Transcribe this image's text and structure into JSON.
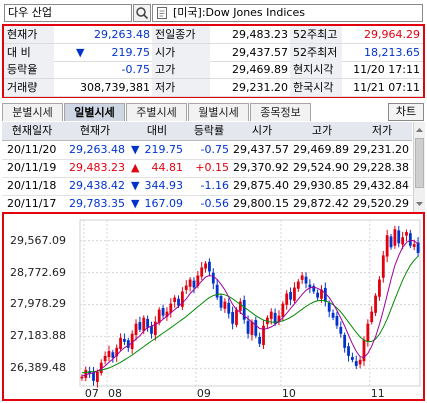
{
  "search": {
    "code_value": "다우 산업",
    "index_name": "[미국]:Dow Jones Indices"
  },
  "quote": {
    "rows": [
      {
        "l1": "현재가",
        "v1": "29,263.48",
        "c1": "blue",
        "l2": "전일종가",
        "v2": "29,483.23",
        "l3": "52주최고",
        "v3": "29,964.29",
        "c3": "red"
      },
      {
        "l1": "대 비",
        "arrow": "▼",
        "v1": "219.75",
        "c1": "blue",
        "l2": "시가",
        "v2": "29,437.57",
        "l3": "52주최저",
        "v3": "18,213.65",
        "c3": "blue"
      },
      {
        "l1": "등락율",
        "v1": "-0.75",
        "c1": "blue",
        "l2": "고가",
        "v2": "29,469.89",
        "l3": "현지시각",
        "v3": "11/20 17:11",
        "c3": "black"
      },
      {
        "l1": "거래량",
        "v1": "308,739,381",
        "c1": "black",
        "l2": "저가",
        "v2": "29,231.20",
        "l3": "한국시각",
        "v3": "11/21 07:11",
        "c3": "black"
      }
    ]
  },
  "tabs": [
    {
      "label": "분별시세",
      "active": false
    },
    {
      "label": "일별시세",
      "active": true
    },
    {
      "label": "주별시세",
      "active": false
    },
    {
      "label": "월별시세",
      "active": false
    },
    {
      "label": "종목정보",
      "active": false
    }
  ],
  "chart_button": "차트",
  "daily": {
    "headers": [
      "현재일자",
      "현재가",
      "대비",
      "등락률",
      "시가",
      "고가",
      "저가"
    ],
    "rows": [
      {
        "date": "20/11/20",
        "price": "29,263.48",
        "arrow": "▼",
        "change": "219.75",
        "pct": "-0.75",
        "open": "29,437.57",
        "high": "29,469.89",
        "low": "29,231.20",
        "color": "blue"
      },
      {
        "date": "20/11/19",
        "price": "29,483.23",
        "arrow": "▲",
        "change": "44.81",
        "pct": "+0.15",
        "open": "29,370.92",
        "high": "29,524.90",
        "low": "29,228.38",
        "color": "red"
      },
      {
        "date": "20/11/18",
        "price": "29,438.42",
        "arrow": "▼",
        "change": "344.93",
        "pct": "-1.16",
        "open": "29,875.40",
        "high": "29,930.85",
        "low": "29,432.84",
        "color": "blue"
      },
      {
        "date": "20/11/17",
        "price": "29,783.35",
        "arrow": "▼",
        "change": "167.09",
        "pct": "-0.56",
        "open": "29,800.15",
        "high": "29,872.42",
        "low": "29,520.29",
        "color": "blue"
      }
    ]
  },
  "chart_data": {
    "type": "line",
    "yticks": [
      "29,567.09",
      "28,772.69",
      "27,978.29",
      "27,183.88",
      "26,389.48"
    ],
    "ytick_values": [
      29567.09,
      28772.69,
      27978.29,
      27183.88,
      26389.48
    ],
    "xticks": [
      "07",
      "08",
      "09",
      "10",
      "11"
    ],
    "ylim": [
      26050,
      29980
    ],
    "colors": {
      "up": "#e3000f",
      "down": "#0033cc",
      "ma_short": "#a000a0",
      "ma_long": "#008c00"
    },
    "closes": [
      26180,
      26350,
      26250,
      26080,
      26300,
      26530,
      26700,
      26820,
      26650,
      26900,
      27150,
      27050,
      26900,
      27250,
      27500,
      27350,
      27650,
      27400,
      27250,
      27550,
      27850,
      27700,
      27800,
      28000,
      28150,
      27950,
      28300,
      28450,
      28600,
      28400,
      28700,
      28900,
      29000,
      28800,
      28500,
      28150,
      27900,
      28050,
      27750,
      27500,
      27850,
      28050,
      27600,
      27250,
      27550,
      27200,
      27000,
      27450,
      27650,
      27800,
      27500,
      27700,
      28000,
      28250,
      28100,
      28400,
      28550,
      28700,
      28500,
      28400,
      28300,
      28150,
      28350,
      28050,
      27800,
      27650,
      27450,
      27250,
      26900,
      26700,
      26600,
      26450,
      26600,
      27100,
      27500,
      27800,
      28200,
      28600,
      29200,
      29700,
      29400,
      29850,
      29500,
      29650,
      29780,
      29440,
      29480,
      29260
    ],
    "ma_short": [
      26200,
      26230,
      26260,
      26280,
      26320,
      26380,
      26450,
      26540,
      26620,
      26720,
      26820,
      26900,
      26960,
      27030,
      27120,
      27200,
      27320,
      27400,
      27440,
      27480,
      27530,
      27610,
      27690,
      27770,
      27850,
      27930,
      28020,
      28120,
      28250,
      28350,
      28450,
      28560,
      28660,
      28700,
      28680,
      28600,
      28480,
      28340,
      28160,
      27980,
      27850,
      27780,
      27700,
      27620,
      27540,
      27460,
      27380,
      27360,
      27380,
      27420,
      27480,
      27560,
      27650,
      27760,
      27880,
      27990,
      28110,
      28230,
      28330,
      28390,
      28410,
      28380,
      28330,
      28260,
      28150,
      28000,
      27830,
      27640,
      27440,
      27220,
      27000,
      26810,
      26680,
      26660,
      26760,
      26940,
      27180,
      27480,
      27830,
      28220,
      28600,
      28950,
      29200,
      29400,
      29520,
      29580,
      29560,
      29480
    ],
    "ma_long": [
      26280,
      26290,
      26300,
      26310,
      26320,
      26340,
      26370,
      26400,
      26440,
      26490,
      26540,
      26600,
      26660,
      26720,
      26790,
      26860,
      26930,
      27000,
      27070,
      27130,
      27200,
      27270,
      27330,
      27400,
      27470,
      27540,
      27610,
      27680,
      27760,
      27840,
      27920,
      28000,
      28080,
      28150,
      28200,
      28230,
      28240,
      28220,
      28180,
      28120,
      28050,
      27980,
      27910,
      27840,
      27770,
      27700,
      27640,
      27590,
      27560,
      27540,
      27540,
      27550,
      27570,
      27610,
      27660,
      27720,
      27790,
      27860,
      27930,
      27990,
      28040,
      28070,
      28080,
      28070,
      28030,
      27970,
      27890,
      27790,
      27670,
      27540,
      27410,
      27280,
      27170,
      27090,
      27050,
      27060,
      27120,
      27240,
      27410,
      27620,
      27860,
      28110,
      28350,
      28580,
      28780,
      28950,
      29080,
      29180
    ]
  }
}
